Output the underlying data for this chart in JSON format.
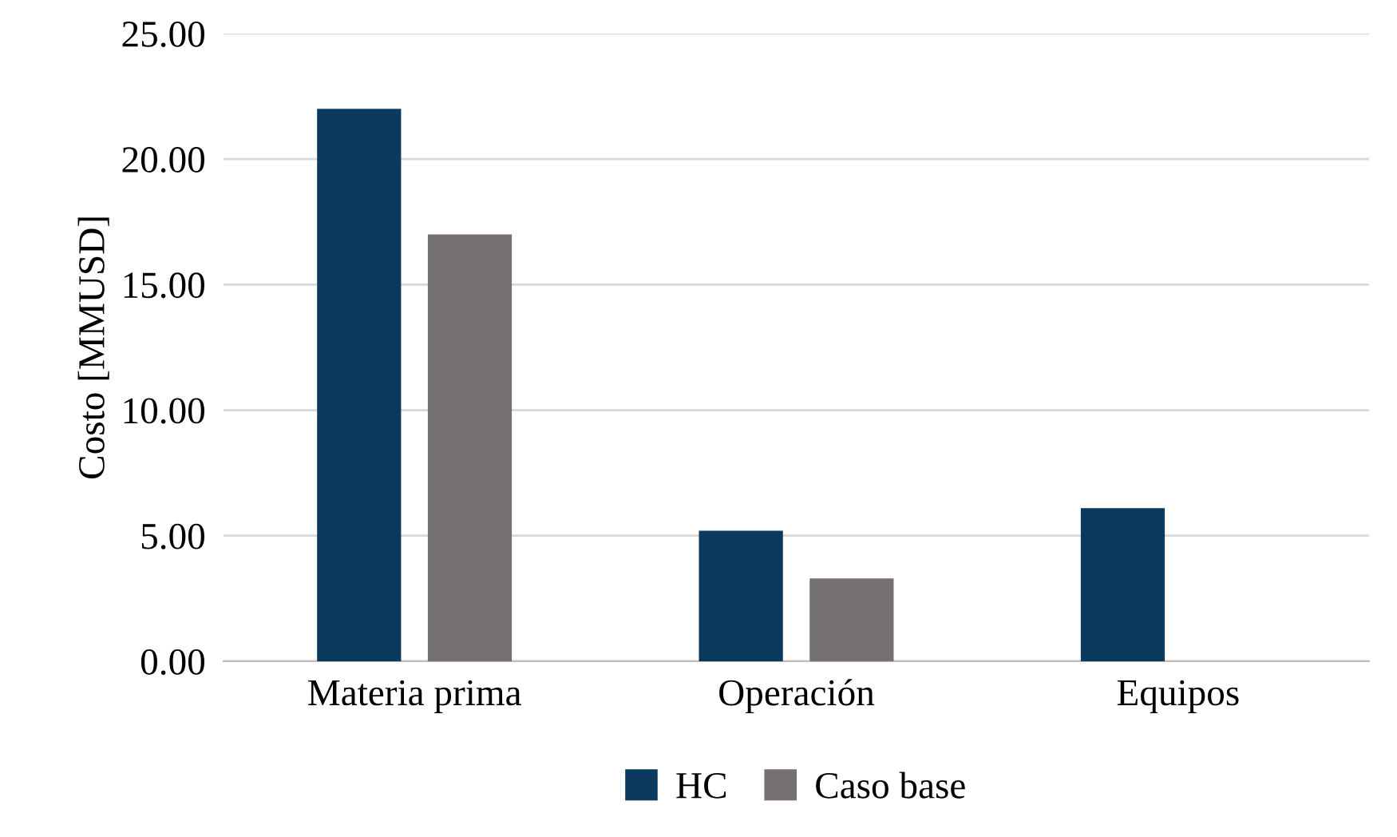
{
  "chart_data": {
    "type": "bar",
    "ylabel": "Costo [MMUSD]",
    "categories": [
      "Materia prima",
      "Operación",
      "Equipos"
    ],
    "series": [
      {
        "name": "HC",
        "color": "#0b3a5e",
        "values": [
          22.0,
          5.2,
          6.1
        ]
      },
      {
        "name": "Caso base",
        "color": "#767171",
        "values": [
          17.0,
          3.3,
          0
        ]
      }
    ],
    "ylim": [
      0,
      25
    ],
    "yticks": [
      {
        "value": 0,
        "label": "0.00"
      },
      {
        "value": 5,
        "label": "5.00"
      },
      {
        "value": 10,
        "label": "10.00"
      },
      {
        "value": 15,
        "label": "15.00"
      },
      {
        "value": 20,
        "label": "20.00"
      },
      {
        "value": 25,
        "label": "25.00"
      }
    ],
    "grid": "y",
    "legend": "bottom"
  }
}
